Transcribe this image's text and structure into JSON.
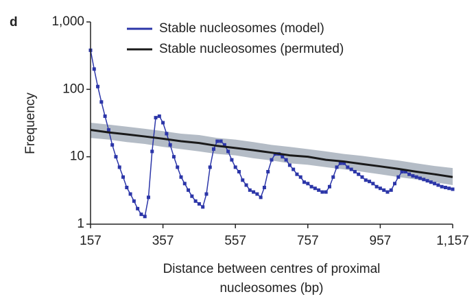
{
  "chart_data": {
    "type": "line",
    "panel_label": "d",
    "y_label": "Frequency",
    "x_label": [
      "Distance between centres of proximal",
      "nucleosomes (bp)"
    ],
    "log_y": true,
    "xlim": [
      157,
      1157
    ],
    "ylim": [
      1,
      1000
    ],
    "xticks": [
      157,
      357,
      557,
      757,
      957,
      {
        "value": 1157,
        "label": "1,157"
      }
    ],
    "yticks": [
      1,
      10,
      100,
      {
        "value": 1000,
        "label": "1,000"
      }
    ],
    "series": [
      {
        "name": "Stable nucleosomes (model)",
        "color": "#2b35a8",
        "x": [
          157,
          167,
          177,
          187,
          197,
          207,
          217,
          227,
          237,
          247,
          257,
          267,
          277,
          287,
          297,
          307,
          317,
          327,
          337,
          347,
          357,
          367,
          377,
          387,
          397,
          407,
          417,
          427,
          437,
          447,
          457,
          467,
          477,
          487,
          497,
          507,
          517,
          527,
          537,
          547,
          557,
          567,
          577,
          587,
          597,
          607,
          617,
          627,
          637,
          647,
          657,
          667,
          677,
          687,
          697,
          707,
          717,
          727,
          737,
          747,
          757,
          767,
          777,
          787,
          797,
          807,
          817,
          827,
          837,
          847,
          857,
          867,
          877,
          887,
          897,
          907,
          917,
          927,
          937,
          947,
          957,
          967,
          977,
          987,
          997,
          1007,
          1017,
          1027,
          1037,
          1047,
          1057,
          1067,
          1077,
          1087,
          1097,
          1107,
          1117,
          1127,
          1137,
          1147,
          1157
        ],
        "values": [
          380,
          200,
          110,
          65,
          40,
          25,
          15,
          10,
          7,
          5,
          3.5,
          2.8,
          2.2,
          1.7,
          1.4,
          1.3,
          2.5,
          12,
          38,
          40,
          32,
          22,
          15,
          10,
          7,
          5,
          4,
          3.2,
          2.6,
          2.2,
          2,
          1.8,
          2.8,
          7,
          13,
          17,
          17,
          15,
          12,
          9,
          7,
          6,
          4.5,
          3.8,
          3.2,
          3,
          2.8,
          2.5,
          3.5,
          6,
          9,
          11,
          11,
          10,
          9,
          7.5,
          6.5,
          5.5,
          5,
          4.2,
          4,
          3.6,
          3.4,
          3.2,
          3,
          3,
          3.6,
          5,
          7,
          8,
          8,
          7,
          6.5,
          6,
          5.5,
          5,
          4.5,
          4.3,
          4,
          3.6,
          3.4,
          3.2,
          3,
          3.2,
          4,
          5,
          6,
          6,
          5.5,
          5.2,
          5,
          4.8,
          4.6,
          4.4,
          4.2,
          4,
          3.8,
          3.6,
          3.5,
          3.4,
          3.3
        ]
      },
      {
        "name": "Stable nucleosomes (permuted)",
        "color": "#1a1a1a",
        "x": [
          157,
          207,
          257,
          307,
          357,
          407,
          457,
          507,
          557,
          607,
          657,
          707,
          757,
          807,
          857,
          907,
          957,
          1007,
          1057,
          1107,
          1157
        ],
        "values": [
          25,
          23,
          21.5,
          20,
          18.5,
          17,
          16,
          14.5,
          13.5,
          12.5,
          11.5,
          10.5,
          10,
          9,
          8.5,
          7.8,
          7.2,
          6.6,
          6,
          5.5,
          5
        ],
        "band_color": "#b4bcc6",
        "upper": [
          32,
          30,
          28,
          26,
          24,
          22,
          21,
          19,
          18,
          16.5,
          15,
          14,
          13,
          12,
          11,
          10.3,
          9.5,
          8.8,
          8,
          7.3,
          6.8
        ],
        "lower": [
          19,
          18,
          16.5,
          15.5,
          14,
          13,
          12,
          11,
          10.5,
          9.5,
          8.8,
          8,
          7.6,
          7,
          6.5,
          6,
          5.5,
          5,
          4.6,
          4.2,
          3.8
        ]
      }
    ]
  }
}
